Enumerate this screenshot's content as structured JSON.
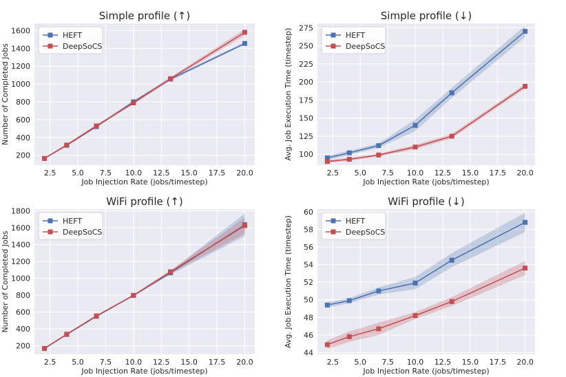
{
  "theme": {
    "background": "#eaeaf2",
    "grid": "#ffffff",
    "heft_color": "#4c72b0",
    "deepsocs_color": "#c44e52"
  },
  "chart_data": [
    {
      "type": "line",
      "title": "Simple profile (↑)",
      "xlabel": "Job Injection Rate (jobs/timestep)",
      "ylabel": "Number of Completed Jobs",
      "xlim": [
        1.1,
        20.9
      ],
      "ylim": [
        90,
        1680
      ],
      "xticks": [
        2.5,
        5.0,
        7.5,
        10.0,
        12.5,
        15.0,
        17.5,
        20.0
      ],
      "xtick_labels": [
        "2.5",
        "5.0",
        "7.5",
        "10.0",
        "12.5",
        "15.0",
        "17.5",
        "20.0"
      ],
      "yticks": [
        200,
        400,
        600,
        800,
        1000,
        1200,
        1400,
        1600
      ],
      "ytick_labels": [
        "200",
        "400",
        "600",
        "800",
        "1000",
        "1200",
        "1400",
        "1600"
      ],
      "grid": true,
      "legend": "top-left",
      "x": [
        2.0,
        4.0,
        6.67,
        10.0,
        13.33,
        20.0
      ],
      "series": [
        {
          "name": "HEFT",
          "color": "#4c72b0",
          "values": [
            165,
            312,
            522,
            800,
            1055,
            1455
          ],
          "lower": [
            160,
            305,
            512,
            785,
            1040,
            1440
          ],
          "upper": [
            170,
            320,
            532,
            815,
            1070,
            1470
          ]
        },
        {
          "name": "DeepSoCS",
          "color": "#c44e52",
          "values": [
            165,
            315,
            530,
            788,
            1060,
            1580
          ],
          "lower": [
            158,
            302,
            515,
            772,
            1042,
            1545
          ],
          "upper": [
            172,
            328,
            545,
            804,
            1078,
            1615
          ]
        }
      ]
    },
    {
      "type": "line",
      "title": "Simple profile (↓)",
      "xlabel": "Job Injection Rate (jobs/timestep)",
      "ylabel": "Avg. Job Execution Time (timestep)",
      "xlim": [
        1.1,
        20.9
      ],
      "ylim": [
        85,
        281
      ],
      "xticks": [
        2.5,
        5.0,
        7.5,
        10.0,
        12.5,
        15.0,
        17.5,
        20.0
      ],
      "xtick_labels": [
        "2.5",
        "5.0",
        "7.5",
        "10.0",
        "12.5",
        "15.0",
        "17.5",
        "20.0"
      ],
      "yticks": [
        100,
        125,
        150,
        175,
        200,
        225,
        250,
        275
      ],
      "ytick_labels": [
        "100",
        "125",
        "150",
        "175",
        "200",
        "225",
        "250",
        "275"
      ],
      "grid": true,
      "legend": "top-left",
      "x": [
        2.0,
        4.0,
        6.67,
        10.0,
        13.33,
        20.0
      ],
      "series": [
        {
          "name": "HEFT",
          "color": "#4c72b0",
          "values": [
            95,
            102,
            112,
            140,
            185,
            270
          ],
          "lower": [
            92,
            99,
            109,
            132,
            178,
            262
          ],
          "upper": [
            98,
            105,
            115,
            148,
            192,
            278
          ]
        },
        {
          "name": "DeepSoCS",
          "color": "#c44e52",
          "values": [
            90,
            93,
            99,
            110,
            125,
            194
          ],
          "lower": [
            88,
            91,
            97,
            107,
            122,
            191
          ],
          "upper": [
            92,
            95,
            101,
            113,
            128,
            197
          ]
        }
      ]
    },
    {
      "type": "line",
      "title": "WiFi profile (↑)",
      "xlabel": "Job Injection Rate (jobs/timestep)",
      "ylabel": "Number of Completed Jobs",
      "xlim": [
        1.1,
        20.9
      ],
      "ylim": [
        100,
        1820
      ],
      "xticks": [
        2.5,
        5.0,
        7.5,
        10.0,
        12.5,
        15.0,
        17.5,
        20.0
      ],
      "xtick_labels": [
        "2.5",
        "5.0",
        "7.5",
        "10.0",
        "12.5",
        "15.0",
        "17.5",
        "20.0"
      ],
      "yticks": [
        200,
        400,
        600,
        800,
        1000,
        1200,
        1400,
        1600,
        1800
      ],
      "ytick_labels": [
        "200",
        "400",
        "600",
        "800",
        "1000",
        "1200",
        "1400",
        "1600",
        "1800"
      ],
      "grid": true,
      "legend": "top-left",
      "x": [
        2.0,
        4.0,
        6.67,
        10.0,
        13.33,
        20.0
      ],
      "series": [
        {
          "name": "HEFT",
          "color": "#4c72b0",
          "values": [
            168,
            335,
            550,
            798,
            1065,
            1635
          ],
          "lower": [
            163,
            328,
            542,
            788,
            1045,
            1500
          ],
          "upper": [
            173,
            342,
            558,
            808,
            1085,
            1770
          ]
        },
        {
          "name": "DeepSoCS",
          "color": "#c44e52",
          "values": [
            170,
            338,
            555,
            798,
            1078,
            1625
          ],
          "lower": [
            164,
            330,
            546,
            788,
            1060,
            1530
          ],
          "upper": [
            176,
            346,
            564,
            808,
            1096,
            1720
          ]
        }
      ]
    },
    {
      "type": "line",
      "title": "WiFi profile (↓)",
      "xlabel": "Job Injection Rate (jobs/timestep)",
      "ylabel": "Avg. Job Execution Time (timestep)",
      "xlim": [
        1.1,
        20.9
      ],
      "ylim": [
        43.8,
        60.3
      ],
      "xticks": [
        2.5,
        5.0,
        7.5,
        10.0,
        12.5,
        15.0,
        17.5,
        20.0
      ],
      "xtick_labels": [
        "2.5",
        "5.0",
        "7.5",
        "10.0",
        "12.5",
        "15.0",
        "17.5",
        "20.0"
      ],
      "yticks": [
        44,
        46,
        48,
        50,
        52,
        54,
        56,
        58,
        60
      ],
      "ytick_labels": [
        "44",
        "46",
        "48",
        "50",
        "52",
        "54",
        "56",
        "58",
        "60"
      ],
      "grid": true,
      "legend": "top-left",
      "x": [
        2.0,
        4.0,
        6.67,
        10.0,
        13.33,
        20.0
      ],
      "series": [
        {
          "name": "HEFT",
          "color": "#4c72b0",
          "values": [
            49.4,
            49.9,
            51.0,
            51.9,
            54.5,
            58.8
          ],
          "lower": [
            49.1,
            49.6,
            50.6,
            51.2,
            53.7,
            57.7
          ],
          "upper": [
            49.7,
            50.2,
            51.4,
            52.6,
            55.3,
            59.9
          ]
        },
        {
          "name": "DeepSoCS",
          "color": "#c44e52",
          "values": [
            44.9,
            45.8,
            46.7,
            48.2,
            49.8,
            53.6
          ],
          "lower": [
            44.4,
            45.2,
            46.0,
            47.8,
            49.3,
            52.8
          ],
          "upper": [
            45.4,
            46.4,
            47.4,
            48.6,
            50.3,
            54.4
          ]
        }
      ]
    }
  ]
}
